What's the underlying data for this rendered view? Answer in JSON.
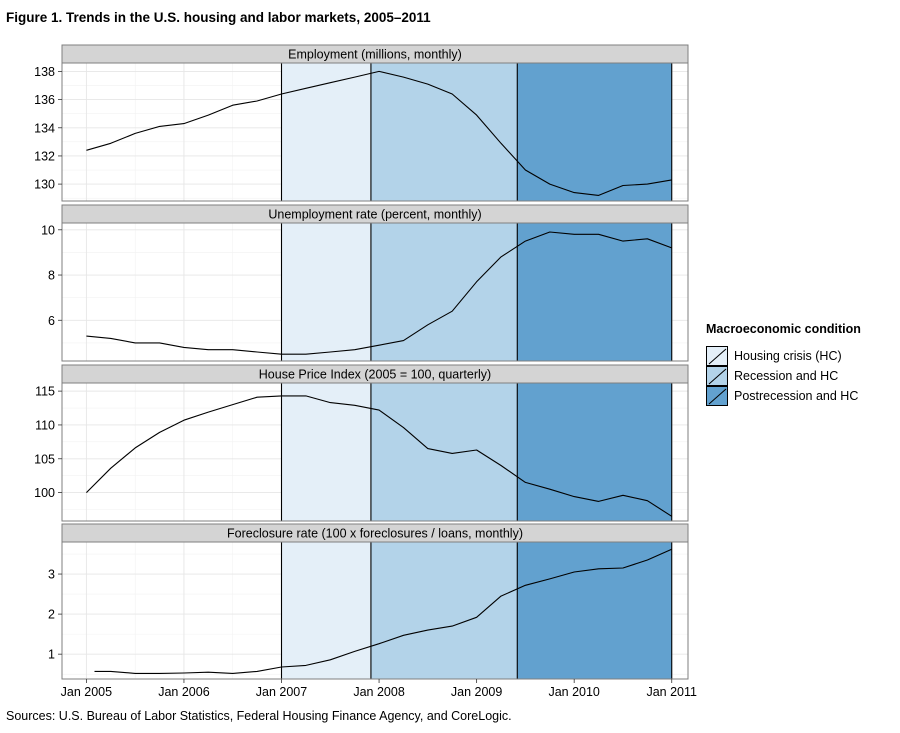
{
  "figure": {
    "title": "Figure 1. Trends in the U.S. housing and labor markets, 2005–2011",
    "source": "Sources:  U.S. Bureau of Labor Statistics, Federal Housing Finance Agency, and CoreLogic."
  },
  "legend": {
    "title": "Macroeconomic condition",
    "items": [
      {
        "label": "Housing crisis (HC)",
        "color": "#e4eff8"
      },
      {
        "label": "Recession and HC",
        "color": "#b3d3e9"
      },
      {
        "label": "Postrecession and HC",
        "color": "#62a1cf"
      }
    ]
  },
  "chart_data": {
    "type": "line",
    "x_axis": {
      "range": [
        "2004-10",
        "2011-03"
      ],
      "ticks": [
        {
          "date": "2005-01",
          "label": "Jan 2005"
        },
        {
          "date": "2006-01",
          "label": "Jan 2006"
        },
        {
          "date": "2007-01",
          "label": "Jan 2007"
        },
        {
          "date": "2008-01",
          "label": "Jan 2008"
        },
        {
          "date": "2009-01",
          "label": "Jan 2009"
        },
        {
          "date": "2010-01",
          "label": "Jan 2010"
        },
        {
          "date": "2011-01",
          "label": "Jan 2011"
        }
      ]
    },
    "periods": [
      {
        "name": "Housing crisis (HC)",
        "start": "2007-01",
        "end": "2007-12",
        "color": "#e4eff8"
      },
      {
        "name": "Recession and HC",
        "start": "2007-12",
        "end": "2009-06",
        "color": "#b3d3e9"
      },
      {
        "name": "Postrecession and HC",
        "start": "2009-06",
        "end": "2011-01",
        "color": "#62a1cf"
      }
    ],
    "panels": [
      {
        "title": "Employment (millions, monthly)",
        "ylim": [
          128.8,
          138.6
        ],
        "yticks": [
          130,
          132,
          134,
          136,
          138
        ],
        "points": [
          [
            "2005-01",
            132.4
          ],
          [
            "2005-04",
            132.9
          ],
          [
            "2005-07",
            133.6
          ],
          [
            "2005-10",
            134.1
          ],
          [
            "2006-01",
            134.3
          ],
          [
            "2006-04",
            134.9
          ],
          [
            "2006-07",
            135.6
          ],
          [
            "2006-10",
            135.9
          ],
          [
            "2007-01",
            136.4
          ],
          [
            "2007-04",
            136.8
          ],
          [
            "2007-07",
            137.2
          ],
          [
            "2007-10",
            137.6
          ],
          [
            "2008-01",
            138.0
          ],
          [
            "2008-04",
            137.6
          ],
          [
            "2008-07",
            137.1
          ],
          [
            "2008-10",
            136.4
          ],
          [
            "2009-01",
            134.9
          ],
          [
            "2009-04",
            132.9
          ],
          [
            "2009-07",
            131.0
          ],
          [
            "2009-10",
            130.0
          ],
          [
            "2010-01",
            129.4
          ],
          [
            "2010-04",
            129.2
          ],
          [
            "2010-07",
            129.9
          ],
          [
            "2010-10",
            130.0
          ],
          [
            "2011-01",
            130.3
          ]
        ]
      },
      {
        "title": "Unemployment rate (percent, monthly)",
        "ylim": [
          4.2,
          10.3
        ],
        "yticks": [
          6,
          8,
          10
        ],
        "points": [
          [
            "2005-01",
            5.3
          ],
          [
            "2005-04",
            5.2
          ],
          [
            "2005-07",
            5.0
          ],
          [
            "2005-10",
            5.0
          ],
          [
            "2006-01",
            4.8
          ],
          [
            "2006-04",
            4.7
          ],
          [
            "2006-07",
            4.7
          ],
          [
            "2006-10",
            4.6
          ],
          [
            "2007-01",
            4.5
          ],
          [
            "2007-04",
            4.5
          ],
          [
            "2007-07",
            4.6
          ],
          [
            "2007-10",
            4.7
          ],
          [
            "2008-01",
            4.9
          ],
          [
            "2008-04",
            5.1
          ],
          [
            "2008-07",
            5.8
          ],
          [
            "2008-10",
            6.4
          ],
          [
            "2009-01",
            7.7
          ],
          [
            "2009-04",
            8.8
          ],
          [
            "2009-07",
            9.5
          ],
          [
            "2009-10",
            9.9
          ],
          [
            "2010-01",
            9.8
          ],
          [
            "2010-04",
            9.8
          ],
          [
            "2010-07",
            9.5
          ],
          [
            "2010-10",
            9.6
          ],
          [
            "2011-01",
            9.2
          ]
        ]
      },
      {
        "title": "House Price Index (2005 = 100, quarterly)",
        "ylim": [
          95.8,
          116.2
        ],
        "yticks": [
          100,
          105,
          110,
          115
        ],
        "points": [
          [
            "2005-01",
            100.0
          ],
          [
            "2005-04",
            103.6
          ],
          [
            "2005-07",
            106.6
          ],
          [
            "2005-10",
            108.9
          ],
          [
            "2006-01",
            110.7
          ],
          [
            "2006-04",
            111.9
          ],
          [
            "2006-07",
            113.0
          ],
          [
            "2006-10",
            114.1
          ],
          [
            "2007-01",
            114.3
          ],
          [
            "2007-04",
            114.3
          ],
          [
            "2007-07",
            113.3
          ],
          [
            "2007-10",
            112.9
          ],
          [
            "2008-01",
            112.2
          ],
          [
            "2008-04",
            109.6
          ],
          [
            "2008-07",
            106.5
          ],
          [
            "2008-10",
            105.8
          ],
          [
            "2009-01",
            106.3
          ],
          [
            "2009-04",
            104.0
          ],
          [
            "2009-07",
            101.5
          ],
          [
            "2009-10",
            100.5
          ],
          [
            "2010-01",
            99.4
          ],
          [
            "2010-04",
            98.7
          ],
          [
            "2010-07",
            99.6
          ],
          [
            "2010-10",
            98.8
          ],
          [
            "2011-01",
            96.5
          ]
        ]
      },
      {
        "title": "Foreclosure rate (100 x foreclosures / loans, monthly)",
        "ylim": [
          0.38,
          3.8
        ],
        "yticks": [
          1,
          2,
          3
        ],
        "points": [
          [
            "2005-02",
            0.57
          ],
          [
            "2005-04",
            0.57
          ],
          [
            "2005-07",
            0.52
          ],
          [
            "2005-10",
            0.52
          ],
          [
            "2006-01",
            0.53
          ],
          [
            "2006-04",
            0.55
          ],
          [
            "2006-07",
            0.52
          ],
          [
            "2006-10",
            0.57
          ],
          [
            "2007-01",
            0.68
          ],
          [
            "2007-04",
            0.72
          ],
          [
            "2007-07",
            0.86
          ],
          [
            "2007-10",
            1.07
          ],
          [
            "2008-01",
            1.26
          ],
          [
            "2008-04",
            1.47
          ],
          [
            "2008-07",
            1.6
          ],
          [
            "2008-10",
            1.7
          ],
          [
            "2009-01",
            1.92
          ],
          [
            "2009-04",
            2.45
          ],
          [
            "2009-07",
            2.72
          ],
          [
            "2009-10",
            2.88
          ],
          [
            "2010-01",
            3.05
          ],
          [
            "2010-04",
            3.13
          ],
          [
            "2010-07",
            3.15
          ],
          [
            "2010-10",
            3.35
          ],
          [
            "2011-01",
            3.62
          ]
        ]
      }
    ]
  }
}
